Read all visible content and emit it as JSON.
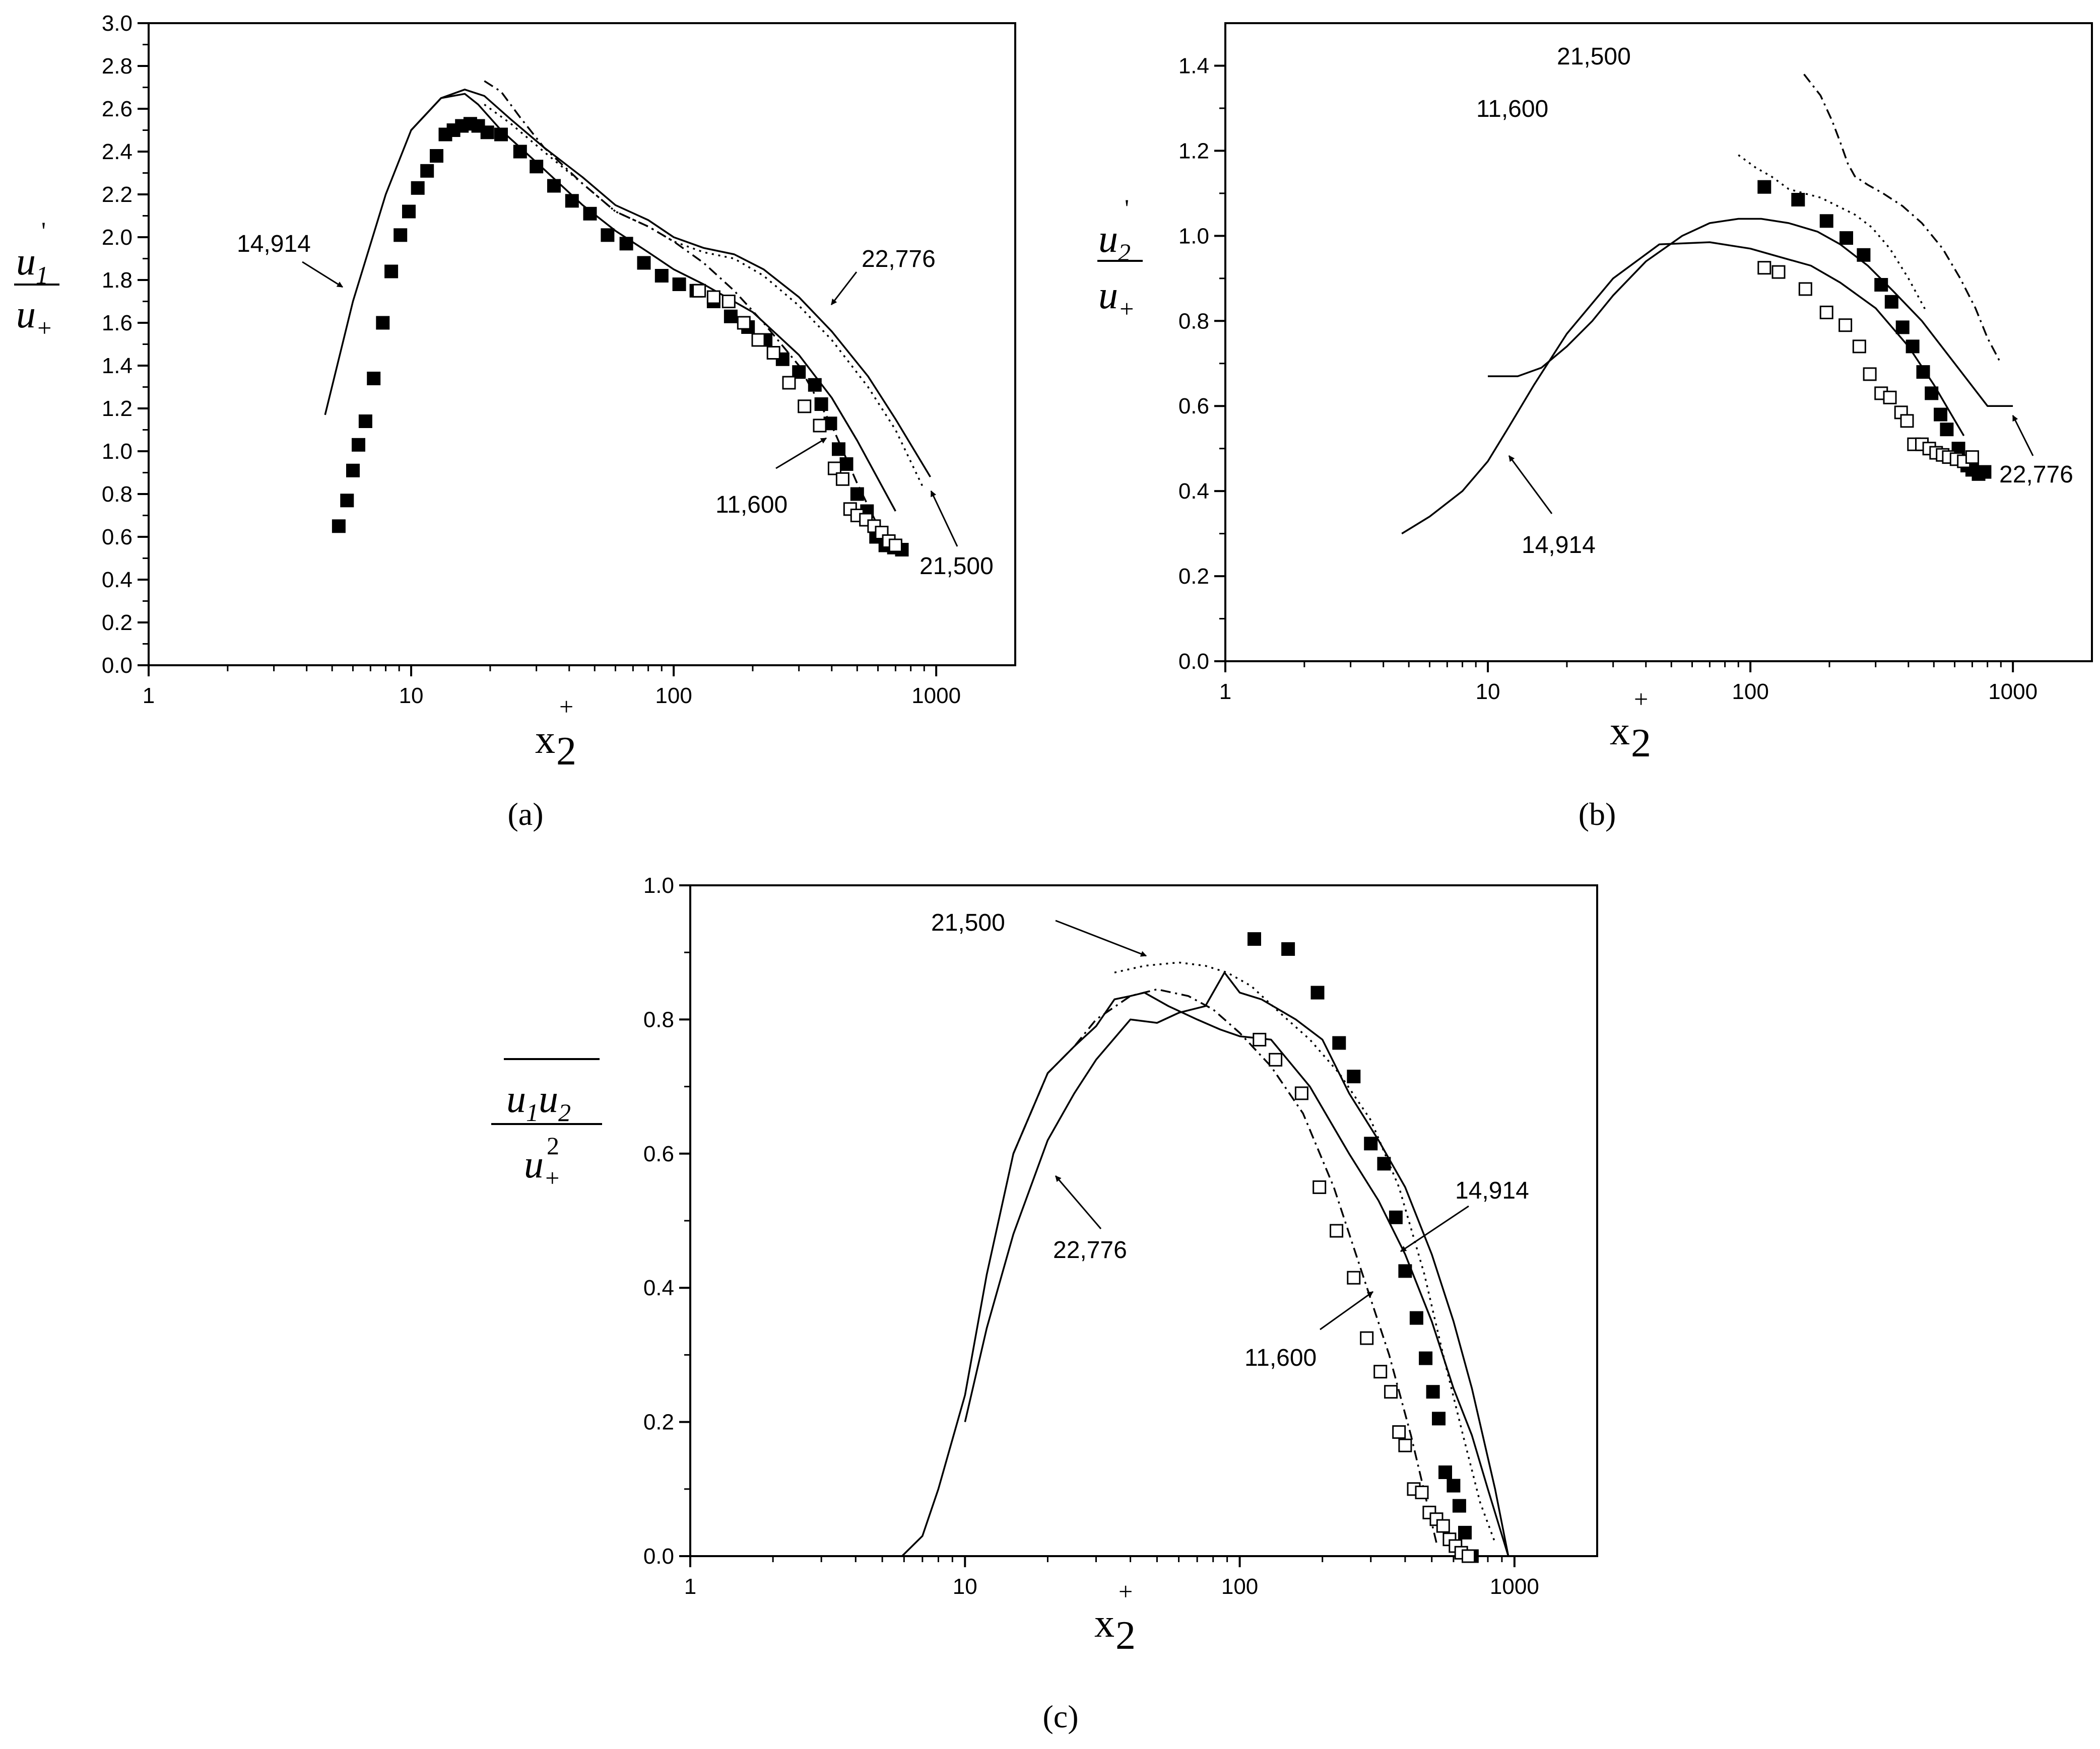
{
  "chart_data": [
    {
      "type": "line",
      "panel": "a",
      "panel_label": "(a)",
      "xscale": "log",
      "xlim": [
        1,
        2000
      ],
      "ylim": [
        0,
        3.0
      ],
      "x_ticks": [
        1,
        10,
        100,
        1000
      ],
      "x_tick_labels": [
        "1",
        "10",
        "100",
        "1000"
      ],
      "y_ticks": [
        0,
        0.2,
        0.4,
        0.6,
        0.8,
        1.0,
        1.2,
        1.4,
        1.6,
        1.8,
        2.0,
        2.2,
        2.4,
        2.6,
        2.8,
        3.0
      ],
      "y_tick_labels": [
        "0.0",
        "0.2",
        "0.4",
        "0.6",
        "0.8",
        "1.0",
        "1.2",
        "1.4",
        "1.6",
        "1.8",
        "2.0",
        "2.2",
        "2.4",
        "2.6",
        "2.8",
        "3.0"
      ],
      "xlabel": "x",
      "xlabel_sup": "+",
      "xlabel_sub": "2",
      "ylabel": "u",
      "ylabel_prime": "'",
      "ylabel_sub": "1",
      "ylabel_den": "u",
      "ylabel_den_sub": "+",
      "series": [
        {
          "name": "14,914",
          "style": "solid",
          "x": [
            4.7,
            6,
            8,
            10,
            13,
            16,
            18,
            22,
            30,
            45,
            60,
            80,
            100,
            130,
            200,
            300,
            400,
            500,
            700
          ],
          "y": [
            1.17,
            1.7,
            2.2,
            2.5,
            2.65,
            2.67,
            2.62,
            2.5,
            2.35,
            2.15,
            2.03,
            1.93,
            1.85,
            1.78,
            1.65,
            1.45,
            1.25,
            1.05,
            0.72
          ]
        },
        {
          "name": "22,776",
          "style": "solid",
          "x": [
            10,
            13,
            16,
            19,
            24,
            32,
            45,
            60,
            80,
            100,
            130,
            170,
            220,
            300,
            400,
            550,
            700,
            950
          ],
          "y": [
            2.5,
            2.65,
            2.69,
            2.66,
            2.55,
            2.42,
            2.28,
            2.15,
            2.08,
            2.0,
            1.95,
            1.92,
            1.85,
            1.72,
            1.56,
            1.35,
            1.15,
            0.88
          ]
        },
        {
          "name": "21,500",
          "style": "dotted",
          "x": [
            19,
            24,
            32,
            45,
            60,
            80,
            100,
            130,
            170,
            220,
            300,
            400,
            550,
            700,
            900
          ],
          "y": [
            2.62,
            2.53,
            2.4,
            2.25,
            2.12,
            2.05,
            1.98,
            1.93,
            1.9,
            1.82,
            1.68,
            1.52,
            1.3,
            1.1,
            0.82
          ]
        },
        {
          "name": "11,600",
          "style": "dashdot",
          "x": [
            19,
            22,
            26,
            32,
            45,
            60,
            80,
            100,
            130,
            170,
            220,
            300,
            400,
            500,
            600,
            700
          ],
          "y": [
            2.73,
            2.68,
            2.56,
            2.42,
            2.25,
            2.12,
            2.05,
            1.98,
            1.88,
            1.75,
            1.6,
            1.4,
            1.12,
            0.85,
            0.65,
            0.55
          ]
        }
      ],
      "markers": [
        {
          "name": "filled squares",
          "fill": "#000000",
          "x": [
            5.3,
            5.7,
            6.0,
            6.3,
            6.7,
            7.2,
            7.8,
            8.4,
            9.1,
            9.8,
            10.6,
            11.5,
            12.5,
            13.5,
            14.5,
            15.6,
            16.8,
            18.0,
            19.5,
            22,
            26,
            30,
            35,
            41,
            48,
            56,
            66,
            77,
            90,
            105,
            122,
            142,
            165,
            192,
            224,
            260,
            300,
            345,
            365,
            395,
            425,
            455,
            500,
            545,
            590,
            640,
            690,
            740
          ],
          "y": [
            0.65,
            0.77,
            0.91,
            1.03,
            1.14,
            1.34,
            1.6,
            1.84,
            2.01,
            2.12,
            2.23,
            2.31,
            2.38,
            2.48,
            2.5,
            2.52,
            2.53,
            2.52,
            2.49,
            2.48,
            2.4,
            2.33,
            2.24,
            2.17,
            2.11,
            2.01,
            1.97,
            1.88,
            1.82,
            1.78,
            1.75,
            1.7,
            1.63,
            1.58,
            1.52,
            1.43,
            1.37,
            1.31,
            1.22,
            1.13,
            1.01,
            0.94,
            0.8,
            0.72,
            0.6,
            0.56,
            0.55,
            0.54
          ]
        },
        {
          "name": "open squares",
          "fill": "#ffffff",
          "x": [
            125,
            142,
            162,
            185,
            210,
            240,
            275,
            315,
            360,
            410,
            440,
            470,
            500,
            540,
            580,
            620,
            660,
            700
          ],
          "y": [
            1.75,
            1.72,
            1.7,
            1.6,
            1.52,
            1.46,
            1.32,
            1.21,
            1.12,
            0.92,
            0.87,
            0.73,
            0.7,
            0.68,
            0.65,
            0.62,
            0.58,
            0.56
          ]
        }
      ],
      "annotations": [
        {
          "text": "14,914"
        },
        {
          "text": "22,776"
        },
        {
          "text": "11,600"
        },
        {
          "text": "21,500"
        }
      ]
    },
    {
      "type": "line",
      "panel": "b",
      "panel_label": "(b)",
      "xscale": "log",
      "xlim": [
        1,
        2000
      ],
      "ylim": [
        0,
        1.5
      ],
      "x_ticks": [
        1,
        10,
        100,
        1000
      ],
      "x_tick_labels": [
        "1",
        "10",
        "100",
        "1000"
      ],
      "y_ticks": [
        0,
        0.2,
        0.4,
        0.6,
        0.8,
        1.0,
        1.2,
        1.4
      ],
      "y_tick_labels": [
        "0.0",
        "0.2",
        "0.4",
        "0.6",
        "0.8",
        "1.0",
        "1.2",
        "1.4"
      ],
      "xlabel": "x",
      "xlabel_sup": "+",
      "xlabel_sub": "2",
      "ylabel": "u",
      "ylabel_prime": "'",
      "ylabel_sub": "2",
      "ylabel_den": "u",
      "ylabel_den_sub": "+",
      "series": [
        {
          "name": "14,914",
          "style": "solid",
          "x": [
            4.7,
            6,
            8,
            10,
            12,
            15,
            20,
            30,
            45,
            70,
            100,
            130,
            170,
            220,
            300,
            400,
            500,
            650
          ],
          "y": [
            0.3,
            0.34,
            0.4,
            0.47,
            0.55,
            0.65,
            0.77,
            0.9,
            0.98,
            0.985,
            0.97,
            0.95,
            0.93,
            0.89,
            0.83,
            0.74,
            0.65,
            0.53
          ]
        },
        {
          "name": "22,776",
          "style": "solid",
          "x": [
            10,
            13,
            16,
            20,
            25,
            30,
            40,
            55,
            70,
            90,
            110,
            140,
            180,
            220,
            280,
            350,
            450,
            600,
            800,
            1000
          ],
          "y": [
            0.67,
            0.67,
            0.69,
            0.74,
            0.8,
            0.86,
            0.94,
            1.0,
            1.03,
            1.04,
            1.04,
            1.03,
            1.01,
            0.98,
            0.93,
            0.87,
            0.8,
            0.7,
            0.6,
            0.6
          ]
        },
        {
          "name": "21,500",
          "style": "dashdot",
          "x": [
            160,
            185,
            205,
            220,
            235,
            250,
            280,
            320,
            380,
            450,
            540,
            630,
            720,
            800,
            900
          ],
          "y": [
            1.38,
            1.33,
            1.27,
            1.22,
            1.17,
            1.14,
            1.12,
            1.1,
            1.07,
            1.03,
            0.97,
            0.9,
            0.83,
            0.76,
            0.7
          ]
        },
        {
          "name": "11,600",
          "style": "dotted",
          "x": [
            90,
            105,
            120,
            140,
            160,
            185,
            215,
            250,
            290,
            340,
            400,
            470
          ],
          "y": [
            1.19,
            1.16,
            1.14,
            1.11,
            1.1,
            1.09,
            1.07,
            1.05,
            1.02,
            0.97,
            0.9,
            0.82
          ]
        }
      ],
      "markers": [
        {
          "name": "filled squares",
          "fill": "#000000",
          "x": [
            113,
            152,
            195,
            232,
            270,
            315,
            345,
            380,
            415,
            455,
            490,
            530,
            560,
            620,
            670,
            700,
            740,
            780
          ],
          "y": [
            1.115,
            1.085,
            1.035,
            0.995,
            0.955,
            0.885,
            0.845,
            0.785,
            0.74,
            0.68,
            0.63,
            0.58,
            0.545,
            0.5,
            0.46,
            0.45,
            0.44,
            0.445
          ]
        },
        {
          "name": "open squares",
          "fill": "#ffffff",
          "x": [
            113,
            128,
            162,
            195,
            230,
            260,
            285,
            315,
            340,
            375,
            395,
            420,
            450,
            480,
            510,
            540,
            570,
            610,
            650,
            700
          ],
          "y": [
            0.925,
            0.915,
            0.875,
            0.82,
            0.79,
            0.74,
            0.675,
            0.63,
            0.62,
            0.585,
            0.565,
            0.51,
            0.51,
            0.5,
            0.49,
            0.485,
            0.48,
            0.475,
            0.47,
            0.48
          ]
        }
      ],
      "annotations": [
        {
          "text": "21,500"
        },
        {
          "text": "11,600"
        },
        {
          "text": "14,914"
        },
        {
          "text": "22,776"
        }
      ]
    },
    {
      "type": "line",
      "panel": "c",
      "panel_label": "(c)",
      "xscale": "log",
      "xlim": [
        1,
        2000
      ],
      "ylim": [
        0,
        1.0
      ],
      "x_ticks": [
        1,
        10,
        100,
        1000
      ],
      "x_tick_labels": [
        "1",
        "10",
        "100",
        "1000"
      ],
      "y_ticks": [
        0,
        0.2,
        0.4,
        0.6,
        0.8,
        1.0
      ],
      "y_tick_labels": [
        "0.0",
        "0.2",
        "0.4",
        "0.6",
        "0.8",
        "1.0"
      ],
      "xlabel": "x",
      "xlabel_sup": "+",
      "xlabel_sub": "2",
      "ylabel_num_a": "u",
      "ylabel_num_a_sub": "1",
      "ylabel_num_b": "u",
      "ylabel_num_b_sub": "2",
      "ylabel_den": "u",
      "ylabel_den_sub": "+",
      "ylabel_den_sup": "2",
      "series": [
        {
          "name": "14,914",
          "style": "solid",
          "x": [
            5.9,
            7,
            8,
            10,
            12,
            15,
            20,
            25,
            30,
            35,
            40,
            45,
            55,
            70,
            85,
            100,
            130,
            180,
            250,
            320,
            400,
            500,
            600,
            700,
            800,
            950
          ],
          "y": [
            0.0,
            0.03,
            0.1,
            0.24,
            0.42,
            0.6,
            0.72,
            0.76,
            0.79,
            0.83,
            0.835,
            0.84,
            0.82,
            0.8,
            0.785,
            0.775,
            0.77,
            0.7,
            0.6,
            0.53,
            0.45,
            0.35,
            0.25,
            0.18,
            0.1,
            0.0
          ]
        },
        {
          "name": "22,776",
          "style": "solid",
          "x": [
            10,
            12,
            15,
            20,
            25,
            30,
            40,
            50,
            60,
            75,
            88,
            100,
            120,
            160,
            200,
            250,
            320,
            400,
            500,
            600,
            700,
            850,
            950
          ],
          "y": [
            0.2,
            0.34,
            0.48,
            0.62,
            0.69,
            0.74,
            0.8,
            0.795,
            0.81,
            0.82,
            0.87,
            0.84,
            0.83,
            0.8,
            0.77,
            0.69,
            0.62,
            0.55,
            0.45,
            0.35,
            0.25,
            0.1,
            0.0
          ]
        },
        {
          "name": "21,500",
          "style": "dotted",
          "x": [
            35,
            45,
            60,
            75,
            90,
            110,
            140,
            180,
            230,
            300,
            380,
            470,
            550,
            650,
            750,
            850
          ],
          "y": [
            0.87,
            0.88,
            0.885,
            0.88,
            0.87,
            0.85,
            0.81,
            0.77,
            0.72,
            0.65,
            0.55,
            0.42,
            0.3,
            0.18,
            0.08,
            0.02
          ]
        },
        {
          "name": "11,600",
          "style": "dashdot",
          "x": [
            15,
            20,
            25,
            30,
            40,
            50,
            65,
            80,
            100,
            130,
            170,
            220,
            280,
            350,
            420,
            480,
            520
          ],
          "y": [
            0.6,
            0.72,
            0.76,
            0.8,
            0.835,
            0.845,
            0.835,
            0.815,
            0.78,
            0.73,
            0.66,
            0.55,
            0.42,
            0.3,
            0.18,
            0.08,
            0.02
          ]
        }
      ],
      "markers": [
        {
          "name": "filled squares",
          "fill": "#000000",
          "x": [
            113,
            150,
            192,
            230,
            260,
            300,
            335,
            370,
            400,
            440,
            475,
            505,
            530,
            560,
            600,
            630,
            660,
            700
          ],
          "y": [
            0.92,
            0.905,
            0.84,
            0.765,
            0.715,
            0.615,
            0.585,
            0.505,
            0.425,
            0.355,
            0.295,
            0.245,
            0.205,
            0.125,
            0.105,
            0.075,
            0.035,
            0.0
          ]
        },
        {
          "name": "open squares",
          "fill": "#ffffff",
          "x": [
            118,
            135,
            168,
            195,
            225,
            260,
            290,
            325,
            355,
            380,
            400,
            430,
            460,
            490,
            520,
            550,
            580,
            610,
            640,
            680
          ],
          "y": [
            0.77,
            0.74,
            0.69,
            0.55,
            0.485,
            0.415,
            0.325,
            0.275,
            0.245,
            0.185,
            0.165,
            0.1,
            0.095,
            0.065,
            0.055,
            0.045,
            0.025,
            0.015,
            0.005,
            0.0
          ]
        }
      ],
      "annotations": [
        {
          "text": "21,500"
        },
        {
          "text": "14,914"
        },
        {
          "text": "22,776"
        },
        {
          "text": "11,600"
        }
      ]
    }
  ]
}
